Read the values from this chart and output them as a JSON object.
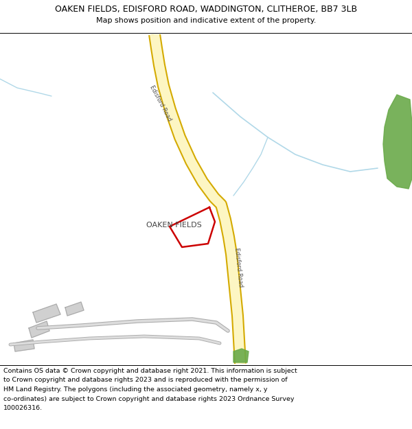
{
  "title_line1": "OAKEN FIELDS, EDISFORD ROAD, WADDINGTON, CLITHEROE, BB7 3LB",
  "title_line2": "Map shows position and indicative extent of the property.",
  "footer_lines": [
    "Contains OS data © Crown copyright and database right 2021. This information is subject",
    "to Crown copyright and database rights 2023 and is reproduced with the permission of",
    "HM Land Registry. The polygons (including the associated geometry, namely x, y",
    "co-ordinates) are subject to Crown copyright and database rights 2023 Ordnance Survey",
    "100026316."
  ],
  "map_bg": "#f5f4f0",
  "road_fill": "#fdf6c3",
  "road_edge": "#d4aa00",
  "road_lw_outer": 13,
  "road_lw_inner": 10,
  "plot_color": "#cc0000",
  "plot_lw": 1.8,
  "stream_color": "#b0d8e8",
  "green_color": "#6aaa4a",
  "building_fill": "#d0d0d0",
  "building_edge": "#aaaaaa",
  "path_color": "#cccccc"
}
